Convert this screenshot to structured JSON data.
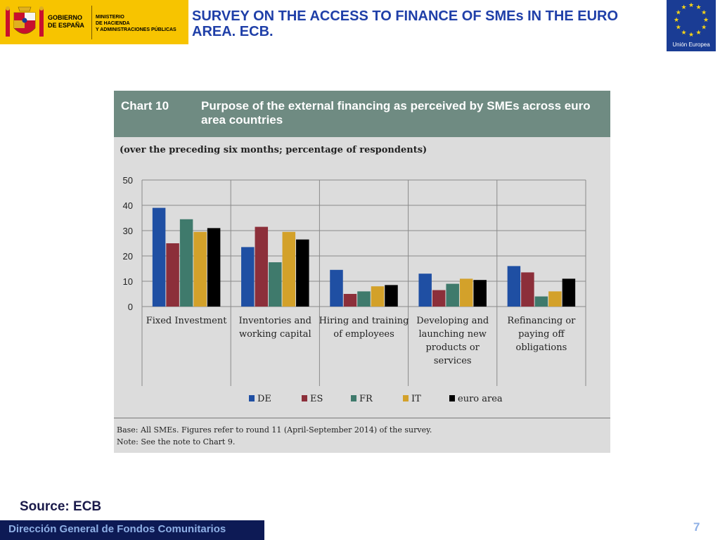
{
  "header": {
    "gobierno_lines": [
      "GOBIERNO",
      "DE ESPAÑA"
    ],
    "ministerio_lines": [
      "MINISTERIO",
      "DE HACIENDA",
      "Y ADMINISTRACIONES PÚBLICAS"
    ],
    "slide_title": "SURVEY ON THE ACCESS TO FINANCE OF SMEs IN THE EURO AREA. ECB.",
    "eu_label": "Unión Europea"
  },
  "chart_panel": {
    "chart_number": "Chart 10",
    "subtitle": "(over the preceding six months; percentage of respondents)",
    "base_note": "Base: All SMEs. Figures refer to round 11 (April-September 2014) of the survey.",
    "note": "Note: See the note to Chart 9."
  },
  "chart_data": {
    "type": "bar",
    "title": "Purpose of the external financing as perceived by SMEs across euro area countries",
    "categories": [
      [
        "Fixed Investment"
      ],
      [
        "Inventories and",
        "working capital"
      ],
      [
        "Hiring and training",
        "of employees"
      ],
      [
        "Developing and",
        "launching new",
        "products or",
        "services"
      ],
      [
        "Refinancing or",
        "paying off",
        "obligations"
      ]
    ],
    "series": [
      {
        "name": "DE",
        "color": "#1f4fa3",
        "values": [
          39,
          23.5,
          14.5,
          13,
          16
        ]
      },
      {
        "name": "ES",
        "color": "#8c2f3a",
        "values": [
          25,
          31.5,
          5,
          6.5,
          13.5
        ]
      },
      {
        "name": "FR",
        "color": "#3f7a6c",
        "values": [
          34.5,
          17.5,
          6,
          9,
          4
        ]
      },
      {
        "name": "IT",
        "color": "#d3a12a",
        "values": [
          29.5,
          29.5,
          8,
          11,
          6
        ]
      },
      {
        "name": "euro area",
        "color": "#000000",
        "values": [
          31,
          26.5,
          8.5,
          10.5,
          11
        ]
      }
    ],
    "y_ticks": [
      "0",
      "10",
      "20",
      "30",
      "40",
      "50"
    ],
    "ylim": [
      0,
      50
    ],
    "grid": true,
    "legend": "bottom"
  },
  "footer": {
    "source": "Source: ECB",
    "department": "Dirección General de Fondos Comunitarios",
    "page_number": "7"
  },
  "colors": {
    "title_blue": "#1f3fa8",
    "banner_yellow": "#f7c400",
    "eu_blue": "#1a3c94",
    "chart_header": "#6f8b82",
    "footer_navy": "#0d1a55"
  }
}
